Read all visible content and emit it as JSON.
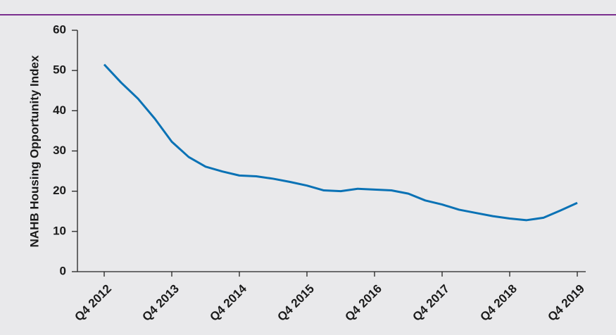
{
  "chart_data": {
    "type": "line",
    "y_label": "NAHB Housing Opportunity Index",
    "categories": [
      "Q4 2012",
      null,
      null,
      null,
      "Q4 2013",
      null,
      null,
      null,
      "Q4 2014",
      null,
      null,
      null,
      "Q4 2015",
      null,
      null,
      null,
      "Q4 2016",
      null,
      null,
      null,
      "Q4 2017",
      null,
      null,
      null,
      "Q4 2018",
      null,
      null,
      null,
      "Q4 2019"
    ],
    "series": [
      {
        "color": "#0a72b5",
        "values": [
          51.5,
          47,
          43,
          38,
          32.3,
          28.5,
          26.1,
          24.9,
          23.9,
          23.7,
          23.1,
          22.3,
          21.4,
          20.2,
          20.0,
          20.6,
          20.4,
          20.2,
          19.4,
          17.7,
          16.7,
          15.4,
          14.6,
          13.8,
          13.2,
          12.8,
          13.4,
          15.2,
          17.1
        ]
      }
    ],
    "ylim": [
      0,
      60
    ],
    "yticks": [
      0,
      10,
      20,
      30,
      40,
      50,
      60
    ],
    "grid": false
  }
}
